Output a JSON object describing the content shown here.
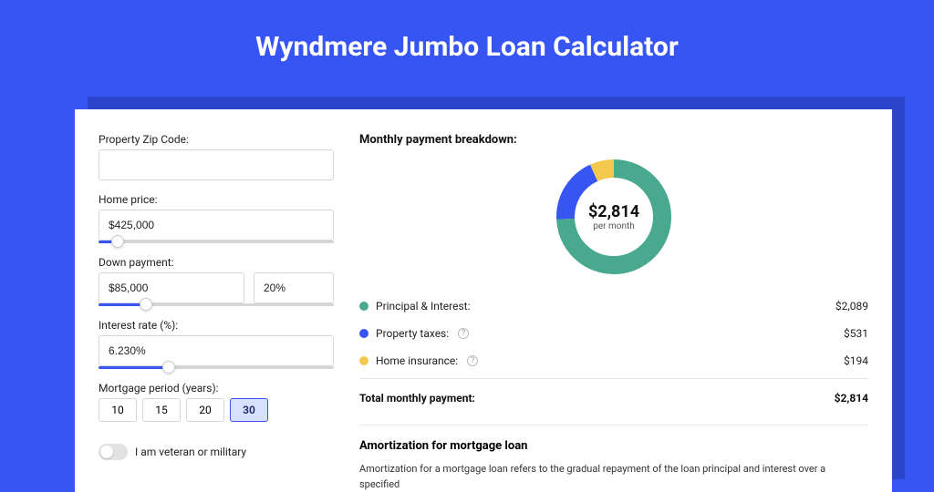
{
  "page": {
    "title": "Wyndmere Jumbo Loan Calculator",
    "background_color": "#3655f2",
    "shadow_color": "#2a44cc",
    "card_color": "#ffffff"
  },
  "form": {
    "zip": {
      "label": "Property Zip Code:",
      "value": ""
    },
    "home_price": {
      "label": "Home price:",
      "value": "$425,000",
      "slider_percent": 8
    },
    "down_payment": {
      "label": "Down payment:",
      "amount": "$85,000",
      "percent": "20%",
      "slider_percent": 20
    },
    "interest": {
      "label": "Interest rate (%):",
      "value": "6.230%",
      "slider_percent": 30
    },
    "mortgage_period": {
      "label": "Mortgage period (years):",
      "options": [
        "10",
        "15",
        "20",
        "30"
      ],
      "selected_index": 3
    },
    "veteran": {
      "label": "I am veteran or military",
      "checked": false
    }
  },
  "breakdown": {
    "title": "Monthly payment breakdown:",
    "total_amount": "$2,814",
    "total_sub": "per month",
    "donut": {
      "size": 126,
      "stroke_width": 20,
      "background": "#ffffff",
      "segments": [
        {
          "label": "Principal & Interest:",
          "value": "$2,089",
          "fraction": 0.742,
          "color": "#49a98f",
          "info": false
        },
        {
          "label": "Property taxes:",
          "value": "$531",
          "fraction": 0.189,
          "color": "#3655f2",
          "info": true
        },
        {
          "label": "Home insurance:",
          "value": "$194",
          "fraction": 0.069,
          "color": "#f2c94c",
          "info": true
        }
      ]
    },
    "total_label": "Total monthly payment:",
    "total_value": "$2,814"
  },
  "amortization": {
    "title": "Amortization for mortgage loan",
    "text": "Amortization for a mortgage loan refers to the gradual repayment of the loan principal and interest over a specified"
  }
}
